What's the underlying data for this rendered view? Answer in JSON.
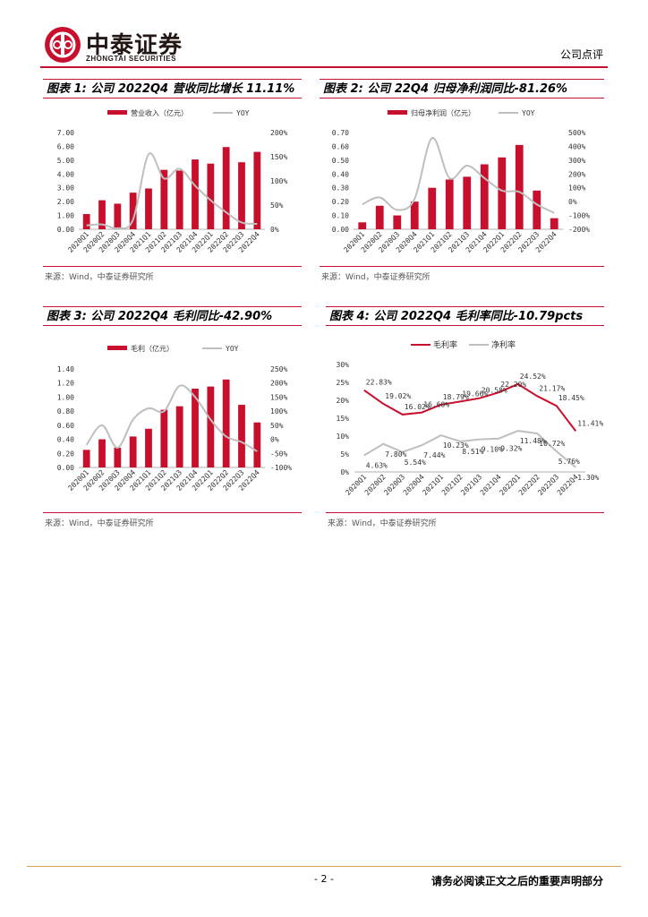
{
  "header": {
    "logo_cn": "中泰证券",
    "logo_en": "ZHONGTAI SECURITIES",
    "doc_type": "公司点评"
  },
  "footer": {
    "page_number": "- 2 -",
    "disclaimer": "请务必阅读正文之后的重要声明部分"
  },
  "chart_data": [
    {
      "type": "bar+line",
      "title": "图表 1: 公司 2022Q4 营收同比增长 11.11%",
      "source": "来源：Wind，中泰证券研究所",
      "categories": [
        "2020Q1",
        "2020Q2",
        "2020Q3",
        "2020Q4",
        "2021Q1",
        "2021Q2",
        "2021Q3",
        "2021Q4",
        "2022Q1",
        "2022Q2",
        "2022Q3",
        "2022Q4"
      ],
      "series": [
        {
          "name": "营业收入（亿元）",
          "kind": "bar",
          "axis": "left",
          "values": [
            1.1,
            2.1,
            1.85,
            2.65,
            2.95,
            4.3,
            4.25,
            5.05,
            4.75,
            5.95,
            4.85,
            5.6
          ]
        },
        {
          "name": "YOY",
          "kind": "line",
          "axis": "right",
          "values": [
            8,
            10,
            2,
            20,
            155,
            105,
            125,
            90,
            60,
            35,
            14,
            11.11
          ]
        }
      ],
      "yleft": {
        "min": 0,
        "max": 7,
        "ticks": [
          "0.00",
          "1.00",
          "2.00",
          "3.00",
          "4.00",
          "5.00",
          "6.00",
          "7.00"
        ]
      },
      "yright": {
        "min": 0,
        "max": 200,
        "ticks": [
          "0%",
          "50%",
          "100%",
          "150%",
          "200%"
        ]
      }
    },
    {
      "type": "bar+line",
      "title": "图表 2: 公司 22Q4 归母净利润同比-81.26%",
      "source": "来源：Wind，中泰证券研究所",
      "categories": [
        "2020Q1",
        "2020Q2",
        "2020Q3",
        "2020Q4",
        "2021Q1",
        "2021Q2",
        "2021Q3",
        "2021Q4",
        "2022Q1",
        "2022Q2",
        "2022Q3",
        "2022Q4"
      ],
      "series": [
        {
          "name": "归母净利润（亿元）",
          "kind": "bar",
          "axis": "left",
          "values": [
            0.05,
            0.17,
            0.1,
            0.2,
            0.3,
            0.36,
            0.38,
            0.47,
            0.52,
            0.61,
            0.28,
            0.08
          ]
        },
        {
          "name": "YOY",
          "kind": "line",
          "axis": "right",
          "values": [
            -20,
            30,
            -60,
            20,
            460,
            170,
            260,
            170,
            80,
            70,
            -20,
            -81.26
          ]
        }
      ],
      "yleft": {
        "min": 0,
        "max": 0.7,
        "ticks": [
          "0.00",
          "0.10",
          "0.20",
          "0.30",
          "0.40",
          "0.50",
          "0.60",
          "0.70"
        ]
      },
      "yright": {
        "min": -200,
        "max": 500,
        "ticks": [
          "-200%",
          "-100%",
          "0%",
          "100%",
          "200%",
          "300%",
          "400%",
          "500%"
        ]
      }
    },
    {
      "type": "bar+line",
      "title": "图表 3: 公司 2022Q4 毛利同比-42.90%",
      "source": "来源：Wind，中泰证券研究所",
      "categories": [
        "2020Q1",
        "2020Q2",
        "2020Q3",
        "2020Q4",
        "2021Q1",
        "2021Q2",
        "2021Q3",
        "2021Q4",
        "2022Q1",
        "2022Q2",
        "2022Q3",
        "2022Q4"
      ],
      "series": [
        {
          "name": "毛利（亿元）",
          "kind": "bar",
          "axis": "left",
          "values": [
            0.25,
            0.4,
            0.28,
            0.44,
            0.55,
            0.82,
            0.87,
            1.12,
            1.15,
            1.25,
            0.89,
            0.64
          ]
        },
        {
          "name": "YOY",
          "kind": "line",
          "axis": "right",
          "values": [
            -20,
            50,
            -30,
            70,
            110,
            100,
            190,
            150,
            70,
            10,
            -10,
            -42.9
          ]
        }
      ],
      "yleft": {
        "min": 0,
        "max": 1.4,
        "ticks": [
          "0.00",
          "0.20",
          "0.40",
          "0.60",
          "0.80",
          "1.00",
          "1.20",
          "1.40"
        ]
      },
      "yright": {
        "min": -100,
        "max": 250,
        "ticks": [
          "-100%",
          "-50%",
          "0%",
          "50%",
          "100%",
          "150%",
          "200%",
          "250%"
        ]
      }
    },
    {
      "type": "line",
      "title": "图表 4: 公司 2022Q4 毛利率同比-10.79pcts",
      "source": "来源：Wind，中泰证券研究所",
      "categories": [
        "2020Q1",
        "2020Q2",
        "2020Q3",
        "2020Q4",
        "2021Q1",
        "2021Q2",
        "2021Q3",
        "2021Q4",
        "2022Q1",
        "2022Q2",
        "2022Q3",
        "2022Q4"
      ],
      "series": [
        {
          "name": "毛利率",
          "color": "#c8102e",
          "values": [
            22.83,
            19.02,
            16.02,
            16.6,
            18.79,
            19.66,
            20.58,
            22.2,
            24.52,
            21.17,
            18.45,
            11.41
          ],
          "labels": [
            "22.83%",
            "19.02%",
            "16.02%",
            "16.60%",
            "18.79%",
            "19.66%",
            "20.58%",
            "22.20%",
            "24.52%",
            "21.17%",
            "18.45%",
            "11.41%"
          ]
        },
        {
          "name": "净利率",
          "color": "#bfbfbf",
          "values": [
            4.63,
            7.8,
            5.54,
            7.44,
            10.23,
            8.51,
            9.1,
            9.32,
            11.48,
            10.72,
            5.76,
            1.3
          ],
          "labels": [
            "4.63%",
            "7.80%",
            "5.54%",
            "7.44%",
            "10.23%",
            "8.51%",
            "9.10%",
            "9.32%",
            "11.48%",
            "10.72%",
            "5.76%",
            "1.30%"
          ]
        }
      ],
      "yleft": {
        "min": 0,
        "max": 30,
        "ticks": [
          "0%",
          "5%",
          "10%",
          "15%",
          "20%",
          "25%",
          "30%"
        ]
      }
    }
  ]
}
